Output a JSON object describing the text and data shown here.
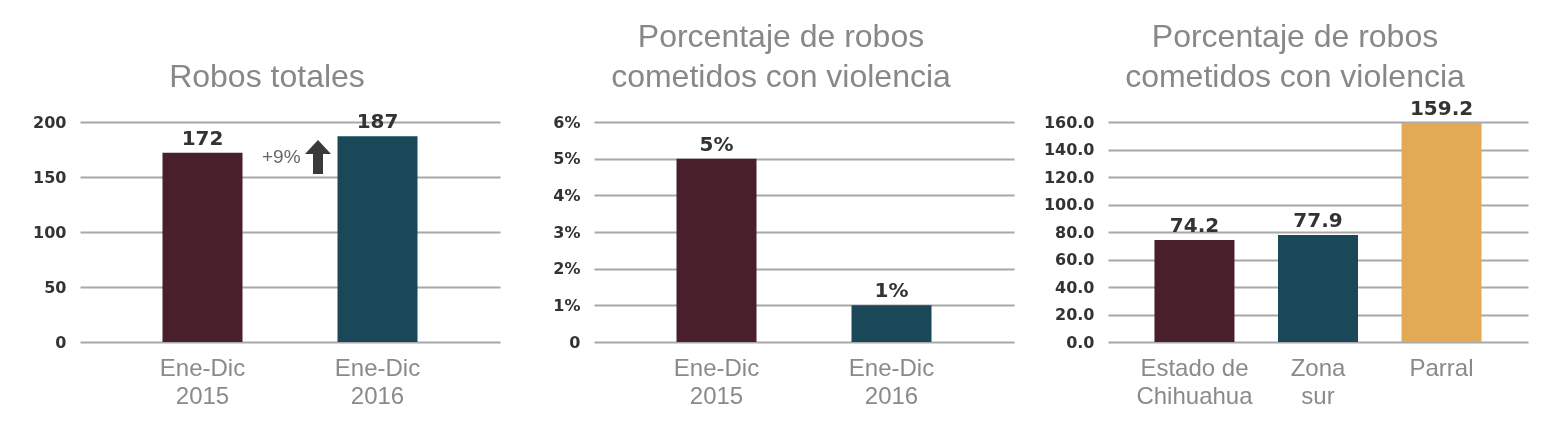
{
  "chart_data": [
    {
      "type": "bar",
      "title": "Robos totales",
      "categories": [
        "Ene-Dic\n2015",
        "Ene-Dic\n2016"
      ],
      "colors": [
        "#4a1f2c",
        "#1b4858"
      ],
      "values": [
        172,
        187
      ],
      "ylim": [
        0,
        200
      ],
      "yticks": [
        0,
        50,
        100,
        150,
        200
      ],
      "grid": "y",
      "data_labels": true,
      "annotations": [
        "+9%"
      ]
    },
    {
      "type": "bar",
      "title": "Porcentaje de robos cometidos con violencia",
      "categories": [
        "Ene-Dic\n2015",
        "Ene-Dic\n2016"
      ],
      "colors": [
        "#4a1f2c",
        "#1b4858"
      ],
      "values": [
        5,
        1
      ],
      "value_labels": [
        "5%",
        "1%"
      ],
      "ylim": [
        0,
        6
      ],
      "yticks": [
        0,
        {
          "value": 1,
          "label": "1%"
        },
        {
          "value": 2,
          "label": "2%"
        },
        {
          "value": 3,
          "label": "3%"
        },
        {
          "value": 4,
          "label": "4%"
        },
        {
          "value": 5,
          "label": "5%"
        },
        {
          "value": 6,
          "label": "6%"
        }
      ],
      "grid": "y"
    },
    {
      "type": "bar",
      "title": "Porcentaje de robos cometidos con violencia",
      "categories": [
        "Estado de\nChihuahua",
        "Zona\nsur",
        "Parral"
      ],
      "colors": [
        "#4a1f2c",
        "#1b4858",
        "#e2aa55"
      ],
      "values": [
        74.2,
        77.9,
        159.2
      ],
      "ylim": [
        0,
        160
      ],
      "yticks": [
        {
          "value": 0,
          "label": "0.0"
        },
        {
          "value": 20,
          "label": "20.0"
        },
        {
          "value": 40,
          "label": "40.0"
        },
        {
          "value": 60,
          "label": "60.0"
        },
        {
          "value": 80,
          "label": "80.0"
        },
        {
          "value": 100,
          "label": "100.0"
        },
        {
          "value": 120,
          "label": "120.0"
        },
        {
          "value": 140,
          "label": "140.0"
        },
        {
          "value": 160,
          "label": "160.0"
        }
      ],
      "grid": "y",
      "data_labels": true
    }
  ]
}
